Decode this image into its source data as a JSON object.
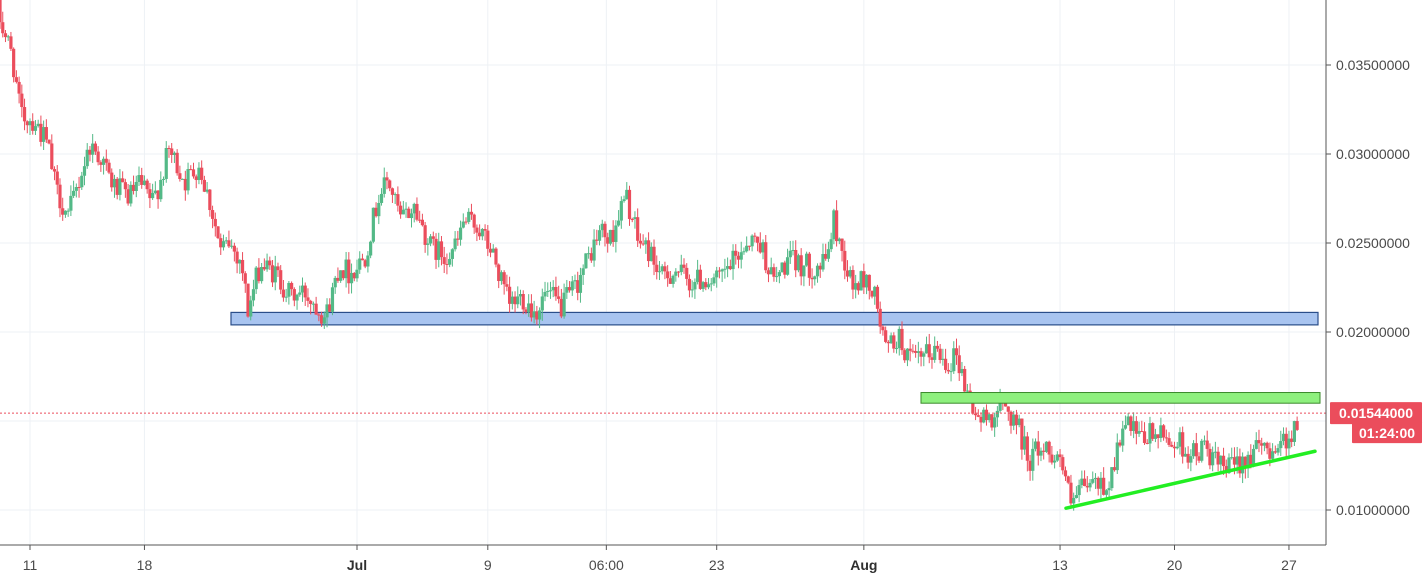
{
  "chart_data": {
    "type": "candlestick",
    "title": "",
    "ylim": [
      0.0088,
      0.0385
    ],
    "grid": true,
    "colors": {
      "up": "#53b987",
      "down": "#eb4d5c",
      "support_zone": "#a8c4f0",
      "support_border": "#2a4e8a",
      "resistance_zone": "#8ef07e",
      "trendline": "#22ee22",
      "price_tag": "#eb4d5c"
    },
    "y_ticks": [
      "0.01000000",
      "0.02000000",
      "0.02500000",
      "0.03000000",
      "0.03500000"
    ],
    "x_ticks": [
      {
        "label": "11",
        "bold": false
      },
      {
        "label": "18",
        "bold": false
      },
      {
        "label": "Jul",
        "bold": true
      },
      {
        "label": "9",
        "bold": false
      },
      {
        "label": "06:00",
        "bold": false
      },
      {
        "label": "23",
        "bold": false
      },
      {
        "label": "Aug",
        "bold": true
      },
      {
        "label": "13",
        "bold": false
      },
      {
        "label": "20",
        "bold": false
      },
      {
        "label": "27",
        "bold": false
      }
    ],
    "support_zone": {
      "from": 0.0204,
      "to": 0.0211
    },
    "resistance_zone": {
      "from": 0.016,
      "to": 0.0166
    },
    "trendline": {
      "from": 0.0101,
      "to": 0.0133
    },
    "current_price": "0.01544000",
    "countdown": "01:24:00",
    "anchors": [
      [
        "2018-06-09 00:00",
        0.0385
      ],
      [
        "2018-06-10 02:00",
        0.0355
      ],
      [
        "2018-06-10 14:00",
        0.0322
      ],
      [
        "2018-06-11 12:00",
        0.0318
      ],
      [
        "2018-06-12 06:00",
        0.0305
      ],
      [
        "2018-06-12 18:00",
        0.028
      ],
      [
        "2018-06-13 12:00",
        0.0265
      ],
      [
        "2018-06-14 04:00",
        0.0285
      ],
      [
        "2018-06-14 20:00",
        0.0305
      ],
      [
        "2018-06-15 12:00",
        0.0298
      ],
      [
        "2018-06-16 06:00",
        0.0282
      ],
      [
        "2018-06-17 06:00",
        0.0276
      ],
      [
        "2018-06-17 20:00",
        0.0283
      ],
      [
        "2018-06-18 16:00",
        0.0273
      ],
      [
        "2018-06-19 06:00",
        0.0288
      ],
      [
        "2018-06-19 16:00",
        0.0302
      ],
      [
        "2018-06-20 16:00",
        0.0285
      ],
      [
        "2018-06-21 12:00",
        0.0294
      ],
      [
        "2018-06-22 06:00",
        0.027
      ],
      [
        "2018-06-22 20:00",
        0.0245
      ],
      [
        "2018-06-23 08:00",
        0.025
      ],
      [
        "2018-06-24 02:00",
        0.024
      ],
      [
        "2018-06-24 12:00",
        0.0212
      ],
      [
        "2018-06-25 06:00",
        0.0238
      ],
      [
        "2018-06-26 06:00",
        0.0232
      ],
      [
        "2018-06-27 02:00",
        0.022
      ],
      [
        "2018-06-28 00:00",
        0.0222
      ],
      [
        "2018-06-28 20:00",
        0.0214
      ],
      [
        "2018-06-29 06:00",
        0.0208
      ],
      [
        "2018-06-30 02:00",
        0.0238
      ],
      [
        "2018-06-30 18:00",
        0.0233
      ],
      [
        "2018-07-01 16:00",
        0.0243
      ],
      [
        "2018-07-02 12:00",
        0.0277
      ],
      [
        "2018-07-03 02:00",
        0.0285
      ],
      [
        "2018-07-03 20:00",
        0.0263
      ],
      [
        "2018-07-04 16:00",
        0.027
      ],
      [
        "2018-07-05 16:00",
        0.0248
      ],
      [
        "2018-07-06 12:00",
        0.0243
      ],
      [
        "2018-07-07 06:00",
        0.0248
      ],
      [
        "2018-07-07 16:00",
        0.0262
      ],
      [
        "2018-07-08 12:00",
        0.026
      ],
      [
        "2018-07-09 12:00",
        0.0243
      ],
      [
        "2018-07-10 02:00",
        0.0225
      ],
      [
        "2018-07-10 12:00",
        0.0215
      ],
      [
        "2018-07-11 06:00",
        0.022
      ],
      [
        "2018-07-12 02:00",
        0.0211
      ],
      [
        "2018-07-12 18:00",
        0.0222
      ],
      [
        "2018-07-13 16:00",
        0.0214
      ],
      [
        "2018-07-14 12:00",
        0.0225
      ],
      [
        "2018-07-15 06:00",
        0.024
      ],
      [
        "2018-07-16 02:00",
        0.0258
      ],
      [
        "2018-07-16 14:00",
        0.025
      ],
      [
        "2018-07-17 08:00",
        0.027
      ],
      [
        "2018-07-17 16:00",
        0.0275
      ],
      [
        "2018-07-18 08:00",
        0.0252
      ],
      [
        "2018-07-19 02:00",
        0.0245
      ],
      [
        "2018-07-19 20:00",
        0.023
      ],
      [
        "2018-07-20 16:00",
        0.0235
      ],
      [
        "2018-07-21 12:00",
        0.0228
      ],
      [
        "2018-07-22 12:00",
        0.023
      ],
      [
        "2018-07-23 06:00",
        0.0228
      ],
      [
        "2018-07-24 06:00",
        0.024
      ],
      [
        "2018-07-25 02:00",
        0.0252
      ],
      [
        "2018-07-25 20:00",
        0.025
      ],
      [
        "2018-07-26 16:00",
        0.0228
      ],
      [
        "2018-07-27 12:00",
        0.024
      ],
      [
        "2018-07-28 06:00",
        0.0238
      ],
      [
        "2018-07-29 02:00",
        0.0236
      ],
      [
        "2018-07-29 18:00",
        0.0238
      ],
      [
        "2018-07-30 08:00",
        0.0262
      ],
      [
        "2018-07-30 20:00",
        0.0245
      ],
      [
        "2018-07-31 12:00",
        0.0225
      ],
      [
        "2018-08-01 06:00",
        0.023
      ],
      [
        "2018-08-01 20:00",
        0.022
      ],
      [
        "2018-08-02 12:00",
        0.019
      ],
      [
        "2018-08-03 06:00",
        0.0197
      ],
      [
        "2018-08-04 02:00",
        0.0183
      ],
      [
        "2018-08-04 18:00",
        0.0185
      ],
      [
        "2018-08-05 12:00",
        0.019
      ],
      [
        "2018-08-06 08:00",
        0.0183
      ],
      [
        "2018-08-06 20:00",
        0.0188
      ],
      [
        "2018-08-07 12:00",
        0.0165
      ],
      [
        "2018-08-08 06:00",
        0.015
      ],
      [
        "2018-08-08 20:00",
        0.0152
      ],
      [
        "2018-08-09 16:00",
        0.0158
      ],
      [
        "2018-08-10 12:00",
        0.015
      ],
      [
        "2018-08-11 06:00",
        0.0128
      ],
      [
        "2018-08-11 20:00",
        0.0135
      ],
      [
        "2018-08-12 16:00",
        0.0133
      ],
      [
        "2018-08-13 06:00",
        0.0128
      ],
      [
        "2018-08-13 20:00",
        0.0102
      ],
      [
        "2018-08-14 12:00",
        0.0112
      ],
      [
        "2018-08-15 06:00",
        0.0115
      ],
      [
        "2018-08-16 02:00",
        0.0113
      ],
      [
        "2018-08-16 20:00",
        0.014
      ],
      [
        "2018-08-17 08:00",
        0.0148
      ],
      [
        "2018-08-18 00:00",
        0.0139
      ],
      [
        "2018-08-18 20:00",
        0.0143
      ],
      [
        "2018-08-19 16:00",
        0.014
      ],
      [
        "2018-08-20 12:00",
        0.0137
      ],
      [
        "2018-08-21 06:00",
        0.0131
      ],
      [
        "2018-08-22 02:00",
        0.0135
      ],
      [
        "2018-08-22 18:00",
        0.0125
      ],
      [
        "2018-08-23 12:00",
        0.0123
      ],
      [
        "2018-08-24 06:00",
        0.0128
      ],
      [
        "2018-08-25 02:00",
        0.0133
      ],
      [
        "2018-08-26 00:00",
        0.0135
      ],
      [
        "2018-08-26 18:00",
        0.0138
      ],
      [
        "2018-08-27 12:00",
        0.0145
      ],
      [
        "2018-08-28 04:00",
        0.0155
      ],
      [
        "2018-08-28 16:00",
        0.0154
      ]
    ]
  }
}
